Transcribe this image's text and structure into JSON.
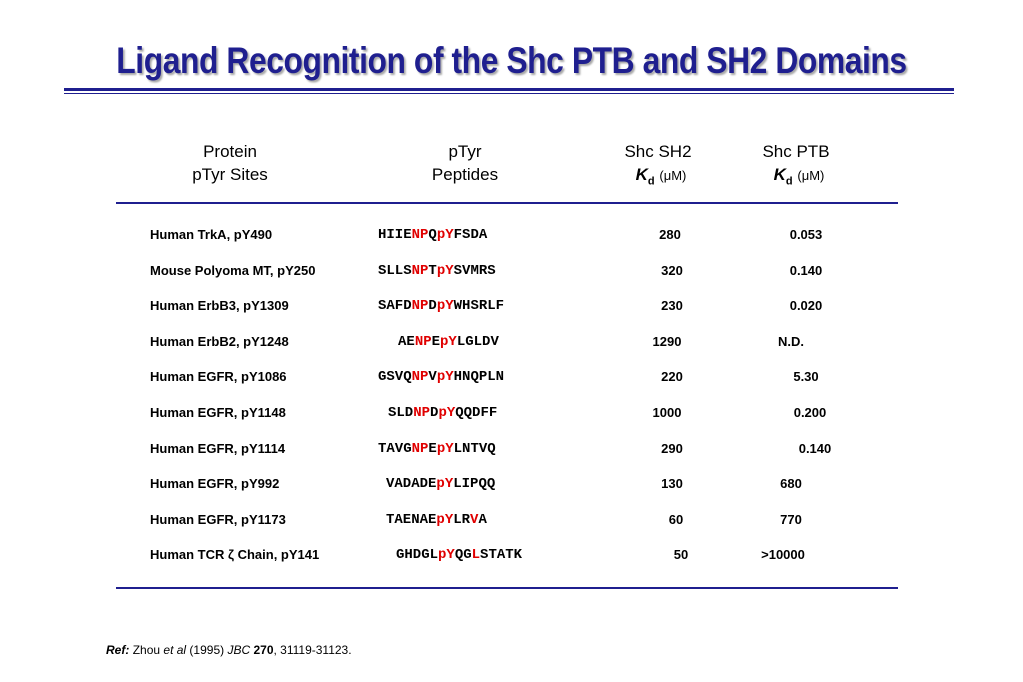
{
  "title": "Ligand Recognition of the Shc PTB and SH2 Domains",
  "headers": {
    "protein": [
      "Protein",
      "pTyr Sites"
    ],
    "peptides": [
      "pTyr",
      "Peptides"
    ],
    "sh2": {
      "name": "Shc SH2",
      "k": "K",
      "sub": "d",
      "unit": "(μM)"
    },
    "ptb": {
      "name": "Shc PTB",
      "k": "K",
      "sub": "d",
      "unit": "(μM)"
    }
  },
  "rows": [
    {
      "site": "Human TrkA, pY490",
      "peptide": [
        [
          "HIIE",
          0
        ],
        [
          "NP",
          1
        ],
        [
          "Q",
          0
        ],
        [
          "pY",
          1
        ],
        [
          "FSDA",
          0
        ]
      ],
      "sh2": "280",
      "ptb": "0.053"
    },
    {
      "site": "Mouse Polyoma MT, pY250",
      "peptide": [
        [
          "SLLS",
          0
        ],
        [
          "NP",
          1
        ],
        [
          "T",
          0
        ],
        [
          "pY",
          1
        ],
        [
          "SVMRS",
          0
        ]
      ],
      "sh2": "320",
      "ptb": "0.140"
    },
    {
      "site": "Human ErbB3, pY1309",
      "peptide": [
        [
          "SAFD",
          0
        ],
        [
          "NP",
          1
        ],
        [
          "D",
          0
        ],
        [
          "pY",
          1
        ],
        [
          "WHSRLF",
          0
        ]
      ],
      "sh2": "230",
      "ptb": "0.020"
    },
    {
      "site": "Human ErbB2, pY1248",
      "peptide": [
        [
          "AE",
          0
        ],
        [
          "NP",
          1
        ],
        [
          "E",
          0
        ],
        [
          "pY",
          1
        ],
        [
          "LGLDV",
          0
        ]
      ],
      "sh2": "1290",
      "ptb": "N.D."
    },
    {
      "site": "Human EGFR, pY1086",
      "peptide": [
        [
          "GSVQ",
          0
        ],
        [
          "NP",
          1
        ],
        [
          "V",
          0
        ],
        [
          "pY",
          1
        ],
        [
          "HNQPLN",
          0
        ]
      ],
      "sh2": "220",
      "ptb": "5.30"
    },
    {
      "site": "Human EGFR, pY1148",
      "peptide": [
        [
          "SLD",
          0
        ],
        [
          "NP",
          1
        ],
        [
          "D",
          0
        ],
        [
          "pY",
          1
        ],
        [
          "QQDFF",
          0
        ]
      ],
      "sh2": "1000",
      "ptb": "0.200"
    },
    {
      "site": "Human EGFR, pY1114",
      "peptide": [
        [
          "TAVG",
          0
        ],
        [
          "NP",
          1
        ],
        [
          "E",
          0
        ],
        [
          "pY",
          1
        ],
        [
          "LNTVQ",
          0
        ]
      ],
      "sh2": "290",
      "ptb": "0.140"
    },
    {
      "site": "Human EGFR, pY992",
      "peptide": [
        [
          "VADADE",
          0
        ],
        [
          "pY",
          1
        ],
        [
          "LIPQQ",
          0
        ]
      ],
      "sh2": "130",
      "ptb": "680"
    },
    {
      "site": "Human EGFR, pY1173",
      "peptide": [
        [
          "TAENAE",
          0
        ],
        [
          "pY",
          1
        ],
        [
          "LR",
          0
        ],
        [
          "V",
          1
        ],
        [
          "A",
          0
        ]
      ],
      "sh2": "60",
      "ptb": "770"
    },
    {
      "site": "Human TCR ζ Chain, pY141",
      "peptide": [
        [
          "GHDGL",
          0
        ],
        [
          "pY",
          1
        ],
        [
          "QG",
          0
        ],
        [
          "L",
          1
        ],
        [
          "STATK",
          0
        ]
      ],
      "sh2": "50",
      "ptb": ">10000"
    }
  ],
  "ref": {
    "label": "Ref:",
    "author": "Zhou",
    "etal": "et al",
    "year": "(1995)",
    "journal": "JBC",
    "volume": "270",
    "pages": ", 31119-31123."
  },
  "colors": {
    "title": "#1f1f8f",
    "highlight": "#e00000",
    "rule": "#1f1f8f"
  }
}
